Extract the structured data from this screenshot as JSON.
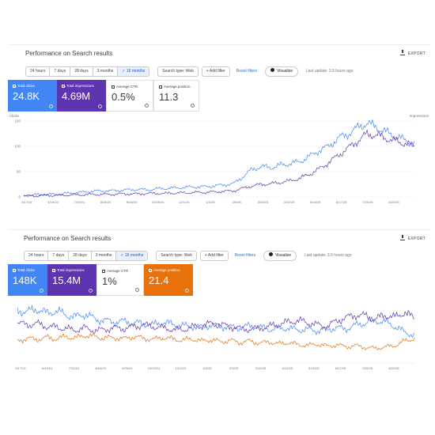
{
  "panels": [
    {
      "title": "Performance on Search results",
      "export_label": "EXPORT",
      "date_ranges": [
        "24 hours",
        "7 days",
        "28 days",
        "3 months",
        "✓ 16 months"
      ],
      "active_range": 4,
      "search_type": "Search type: Web",
      "add_filter": "+ Add filter",
      "reset_filters": "Reset filters",
      "visualize": "Visualize",
      "last_update": "Last update: 3.5 hours ago",
      "cards": [
        {
          "label": "Total clicks",
          "value": "24.8K",
          "checked": true,
          "color": "#4285f4"
        },
        {
          "label": "Total impressions",
          "value": "4.69M",
          "checked": true,
          "color": "#5e35b1"
        },
        {
          "label": "Average CTR",
          "value": "0.5%",
          "checked": false
        },
        {
          "label": "Average position",
          "value": "11.3",
          "checked": false
        }
      ],
      "chart_data": {
        "type": "line",
        "left_axis_label": "Clicks",
        "right_axis_label": "Impressions",
        "y_ticks_left": [
          "150",
          "100",
          "50",
          "0"
        ],
        "x_tick_labels": [
          "5/17/24",
          "6/19/24",
          "7/22/24",
          "8/24/24",
          "9/26/24",
          "10/29/24",
          "12/1/24",
          "1/3/25",
          "2/5/25",
          "3/10/25",
          "4/12/25",
          "5/15/25",
          "6/17/25",
          "7/20/25",
          "8/22/25"
        ],
        "series": [
          {
            "name": "Total clicks",
            "color": "#4285f4",
            "values": [
              3,
              4,
              5,
              5,
              6,
              8,
              9,
              11,
              12,
              12,
              13,
              14,
              15,
              14,
              16,
              17,
              18,
              19,
              20,
              20,
              22,
              24,
              26,
              40,
              55,
              60,
              58,
              63,
              66,
              70,
              80,
              92,
              100,
              116,
              124,
              136,
              146,
              138,
              128,
              120,
              112,
              104
            ]
          },
          {
            "name": "Total impressions",
            "color": "#5e35b1",
            "values": [
              2,
              2,
              3,
              3,
              3,
              4,
              4,
              5,
              5,
              5,
              6,
              6,
              6,
              7,
              7,
              7,
              8,
              8,
              9,
              9,
              10,
              11,
              12,
              17,
              22,
              25,
              26,
              29,
              32,
              37,
              45,
              55,
              68,
              82,
              96,
              110,
              124,
              122,
              116,
              110,
              106,
              100
            ]
          }
        ]
      }
    },
    {
      "title": "Performance on Search results",
      "export_label": "EXPORT",
      "date_ranges": [
        "24 hours",
        "7 days",
        "28 days",
        "3 months",
        "✓ 16 months"
      ],
      "active_range": 4,
      "search_type": "Search type: Web",
      "add_filter": "+ Add filter",
      "reset_filters": "Reset filters",
      "visualize": "Visualize",
      "last_update": "Last update: 3.5 hours ago",
      "cards": [
        {
          "label": "Total clicks",
          "value": "148K",
          "checked": true,
          "color": "#4285f4"
        },
        {
          "label": "Total impressions",
          "value": "15.4M",
          "checked": true,
          "color": "#5e35b1"
        },
        {
          "label": "Average CTR",
          "value": "1%",
          "checked": false
        },
        {
          "label": "Average position",
          "value": "21.4",
          "checked": true,
          "color": "#e8710a"
        }
      ],
      "chart_data": {
        "type": "line",
        "x_tick_labels": [
          "5/17/24",
          "6/19/24",
          "7/22/24",
          "8/24/24",
          "9/26/24",
          "10/29/24",
          "12/1/24",
          "1/3/25",
          "2/5/25",
          "3/10/25",
          "4/12/25",
          "5/15/25",
          "6/17/25",
          "7/20/25",
          "8/22/25"
        ],
        "series": [
          {
            "name": "Total clicks",
            "color": "#4285f4",
            "values": [
              72,
              70,
              74,
              68,
              71,
              66,
              63,
              67,
              60,
              58,
              56,
              57,
              55,
              54,
              52,
              56,
              53,
              51,
              50,
              49,
              52,
              50,
              49,
              48,
              51,
              49,
              46,
              47,
              48,
              45,
              46,
              44,
              46,
              48,
              47,
              52,
              55,
              58,
              56,
              50,
              42,
              38
            ]
          },
          {
            "name": "Total impressions",
            "color": "#5e35b1",
            "values": [
              55,
              52,
              54,
              50,
              49,
              47,
              45,
              48,
              44,
              46,
              48,
              47,
              50,
              52,
              50,
              48,
              46,
              45,
              49,
              51,
              54,
              52,
              50,
              47,
              46,
              48,
              50,
              53,
              56,
              58,
              55,
              52,
              50,
              58,
              62,
              66,
              64,
              60,
              66,
              62,
              70,
              60
            ]
          },
          {
            "name": "Average position",
            "color": "#e8710a",
            "values": [
              30,
              34,
              32,
              35,
              33,
              36,
              34,
              38,
              36,
              34,
              35,
              33,
              36,
              34,
              32,
              35,
              33,
              31,
              33,
              30,
              32,
              29,
              31,
              28,
              30,
              27,
              29,
              26,
              28,
              25,
              24,
              26,
              23,
              25,
              22,
              24,
              21,
              20,
              22,
              24,
              30,
              34
            ]
          }
        ]
      }
    }
  ]
}
